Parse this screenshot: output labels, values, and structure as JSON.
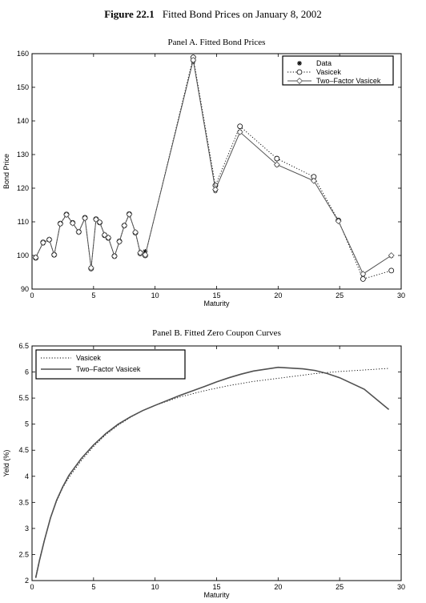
{
  "figure": {
    "number": "Figure 22.1",
    "title": "Fitted Bond Prices on January 8, 2002"
  },
  "chart_data": [
    {
      "type": "line",
      "title": "Panel A. Fitted Bond Prices",
      "xlabel": "Maturity",
      "ylabel": "Bond Price",
      "xlim": [
        0,
        30
      ],
      "ylim": [
        90,
        160
      ],
      "xticks": [
        0,
        5,
        10,
        15,
        20,
        25,
        30
      ],
      "yticks": [
        90,
        100,
        110,
        120,
        130,
        140,
        150,
        160
      ],
      "legend_position": "top-right",
      "x": [
        0.3,
        0.9,
        1.4,
        1.8,
        2.3,
        2.8,
        3.3,
        3.8,
        4.3,
        4.8,
        5.2,
        5.5,
        5.9,
        6.2,
        6.7,
        7.1,
        7.5,
        7.9,
        8.4,
        8.8,
        9.2,
        13.1,
        14.9,
        16.9,
        19.9,
        22.9,
        24.9,
        26.9,
        29.2
      ],
      "series": [
        {
          "name": "Data",
          "style": "markers",
          "marker": "asterisk",
          "color": "#000000",
          "values": [
            99.5,
            103.6,
            104.6,
            100.2,
            109.3,
            112.0,
            109.6,
            106.9,
            111.0,
            96.4,
            110.6,
            109.9,
            106.2,
            105.4,
            99.7,
            104.0,
            108.8,
            112.1,
            106.9,
            101.0,
            101.2,
            157.7,
            119.2,
            136.8,
            126.9,
            122.3,
            110.3,
            94.3,
            99.9
          ]
        },
        {
          "name": "Vasicek",
          "style": "dotted-with-circles",
          "marker": "circle",
          "color": "#000000",
          "values": [
            99.3,
            103.9,
            104.7,
            100.2,
            109.5,
            112.2,
            109.7,
            107.0,
            111.2,
            96.1,
            110.8,
            109.8,
            106.0,
            105.2,
            99.8,
            104.2,
            108.9,
            112.3,
            106.8,
            100.6,
            100.0,
            158.9,
            120.8,
            138.4,
            128.8,
            123.4,
            110.4,
            93.0,
            95.5
          ]
        },
        {
          "name": "Two–Factor Vasicek",
          "style": "solid-with-diamonds",
          "marker": "diamond",
          "color": "#505050",
          "values": [
            99.4,
            103.8,
            104.7,
            100.2,
            109.4,
            112.1,
            109.6,
            107.0,
            111.1,
            96.3,
            110.7,
            109.9,
            106.1,
            105.3,
            99.8,
            104.1,
            108.9,
            112.2,
            106.9,
            100.8,
            100.2,
            158.1,
            119.6,
            136.7,
            127.0,
            122.2,
            110.2,
            94.5,
            100.0
          ]
        }
      ]
    },
    {
      "type": "line",
      "title": "Panel B. Fitted Zero Coupon Curves",
      "xlabel": "Maturity",
      "ylabel": "Yeld (%)",
      "xlim": [
        0,
        30
      ],
      "ylim": [
        2,
        6.5
      ],
      "xticks": [
        0,
        5,
        10,
        15,
        20,
        25,
        30
      ],
      "yticks": [
        2,
        2.5,
        3,
        3.5,
        4,
        4.5,
        5,
        5.5,
        6,
        6.5
      ],
      "legend_position": "top-left",
      "x": [
        0.3,
        0.6,
        1,
        1.5,
        2,
        2.5,
        3,
        4,
        5,
        6,
        7,
        8,
        9,
        10,
        12,
        14,
        15,
        16,
        17,
        18,
        20,
        22,
        23,
        24,
        25,
        27,
        29
      ],
      "series": [
        {
          "name": "Vasicek",
          "style": "dotted",
          "color": "#000000",
          "values": [
            2.08,
            2.4,
            2.78,
            3.2,
            3.52,
            3.78,
            3.98,
            4.3,
            4.57,
            4.8,
            4.98,
            5.13,
            5.26,
            5.36,
            5.52,
            5.64,
            5.69,
            5.74,
            5.78,
            5.82,
            5.88,
            5.94,
            5.97,
            5.99,
            6.01,
            6.04,
            6.07
          ]
        },
        {
          "name": "Two–Factor Vasicek",
          "style": "solid",
          "color": "#505050",
          "values": [
            2.05,
            2.38,
            2.77,
            3.2,
            3.54,
            3.8,
            4.02,
            4.34,
            4.6,
            4.82,
            5.0,
            5.14,
            5.26,
            5.36,
            5.55,
            5.72,
            5.81,
            5.89,
            5.96,
            6.02,
            6.09,
            6.06,
            6.03,
            5.97,
            5.89,
            5.67,
            5.28
          ]
        }
      ]
    }
  ]
}
